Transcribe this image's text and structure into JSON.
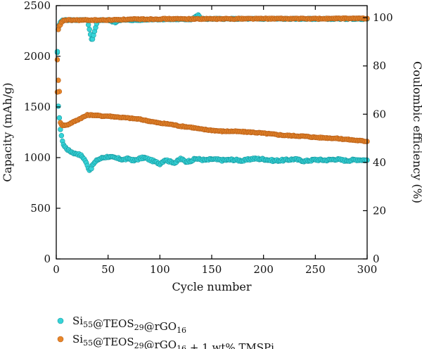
{
  "chart_data": {
    "type": "scatter",
    "xlabel": "Cycle number",
    "ylabel_left": "Capacity (mAh/g)",
    "ylabel_right": "Coulombic efficiency (%)",
    "xlim": [
      0,
      300
    ],
    "ylim_left": [
      0,
      2500
    ],
    "ylim_right": [
      0,
      105
    ],
    "xticks": [
      0,
      50,
      100,
      150,
      200,
      250,
      300
    ],
    "yticks_left": [
      0,
      500,
      1000,
      1500,
      2000,
      2500
    ],
    "yticks_right": [
      0,
      20,
      40,
      60,
      80,
      100
    ],
    "grid": false,
    "legend_position": "bottom",
    "series": [
      {
        "name": "Si55@TEOS29@rGO16",
        "legend_parts": [
          [
            "Si",
            ""
          ],
          [
            "55",
            "sub"
          ],
          [
            "@TEOS",
            ""
          ],
          [
            "29",
            "sub"
          ],
          [
            "@rGO",
            ""
          ],
          [
            "16",
            "sub"
          ]
        ],
        "color": "#36d4d8",
        "capacity": {
          "x": [
            1,
            2,
            3,
            4,
            5,
            6,
            7,
            8,
            9,
            10,
            12,
            14,
            16,
            18,
            20,
            22,
            24,
            26,
            28,
            30,
            32,
            34,
            36,
            38,
            40,
            45,
            50,
            55,
            60,
            65,
            70,
            75,
            80,
            85,
            90,
            95,
            100,
            105,
            110,
            115,
            120,
            125,
            130,
            135,
            140,
            145,
            150,
            160,
            170,
            180,
            190,
            200,
            210,
            220,
            230,
            240,
            250,
            260,
            270,
            280,
            290,
            300
          ],
          "y": [
            2030,
            1500,
            1400,
            1280,
            1210,
            1170,
            1130,
            1110,
            1100,
            1090,
            1070,
            1060,
            1050,
            1040,
            1040,
            1030,
            1020,
            1000,
            970,
            920,
            880,
            900,
            940,
            960,
            980,
            1000,
            1010,
            1000,
            990,
            980,
            990,
            970,
            990,
            1000,
            980,
            960,
            940,
            980,
            960,
            950,
            990,
            960,
            970,
            990,
            980,
            975,
            985,
            975,
            980,
            970,
            990,
            985,
            970,
            975,
            985,
            965,
            980,
            975,
            985,
            970,
            980,
            975
          ]
        },
        "efficiency": {
          "x": [
            1,
            2,
            3,
            4,
            5,
            6,
            8,
            10,
            15,
            20,
            25,
            30,
            34,
            35,
            40,
            50,
            57,
            60,
            65,
            70,
            80,
            90,
            100,
            110,
            120,
            130,
            137,
            140,
            150,
            160,
            170,
            180,
            190,
            200,
            210,
            220,
            230,
            240,
            250,
            260,
            270,
            280,
            290,
            300
          ],
          "y": [
            86,
            95,
            97,
            98,
            98.5,
            99,
            99,
            99,
            99,
            99,
            99,
            99,
            91,
            91,
            99,
            99,
            98,
            99,
            99,
            99,
            99,
            99.3,
            99.3,
            99.3,
            99.3,
            99.3,
            101,
            99.5,
            99.5,
            99.5,
            99.5,
            99.5,
            99.5,
            99.5,
            99.5,
            99.5,
            99.5,
            99.5,
            99.5,
            99.5,
            99.5,
            99.5,
            99.5,
            99.5
          ]
        }
      },
      {
        "name": "Si55@TEOS29@rGO16 + 1 wt% TMSPi",
        "legend_parts": [
          [
            "Si",
            ""
          ],
          [
            "55",
            "sub"
          ],
          [
            "@TEOS",
            ""
          ],
          [
            "29",
            "sub"
          ],
          [
            "@rGO",
            ""
          ],
          [
            "16",
            "sub"
          ],
          [
            " + 1 wt% TMSPi",
            ""
          ]
        ],
        "color": "#e8862a",
        "capacity": {
          "x": [
            1,
            2,
            3,
            4,
            5,
            6,
            8,
            10,
            12,
            14,
            16,
            18,
            20,
            22,
            24,
            26,
            28,
            30,
            35,
            40,
            45,
            50,
            60,
            70,
            80,
            90,
            100,
            110,
            120,
            130,
            140,
            150,
            160,
            170,
            180,
            190,
            200,
            210,
            220,
            230,
            240,
            250,
            260,
            270,
            280,
            290,
            300
          ],
          "y": [
            1970,
            1760,
            1650,
            1350,
            1330,
            1320,
            1320,
            1320,
            1330,
            1340,
            1350,
            1360,
            1370,
            1380,
            1390,
            1400,
            1410,
            1420,
            1420,
            1415,
            1410,
            1410,
            1400,
            1390,
            1380,
            1360,
            1340,
            1330,
            1310,
            1300,
            1280,
            1270,
            1260,
            1260,
            1255,
            1250,
            1240,
            1230,
            1220,
            1215,
            1210,
            1200,
            1195,
            1190,
            1180,
            1170,
            1160
          ]
        },
        "efficiency": {
          "x": [
            1,
            2,
            3,
            4,
            5,
            6,
            8,
            10,
            20,
            30,
            40,
            50,
            60,
            70,
            80,
            90,
            100,
            120,
            140,
            160,
            180,
            200,
            220,
            240,
            260,
            280,
            300
          ],
          "y": [
            69,
            95,
            96.5,
            97,
            98,
            98.5,
            99,
            99,
            99,
            99,
            99,
            99,
            99.2,
            99.3,
            99.4,
            99.4,
            99.5,
            99.5,
            99.5,
            99.5,
            99.6,
            99.6,
            99.6,
            99.6,
            99.6,
            99.7,
            99.7
          ]
        }
      }
    ]
  }
}
